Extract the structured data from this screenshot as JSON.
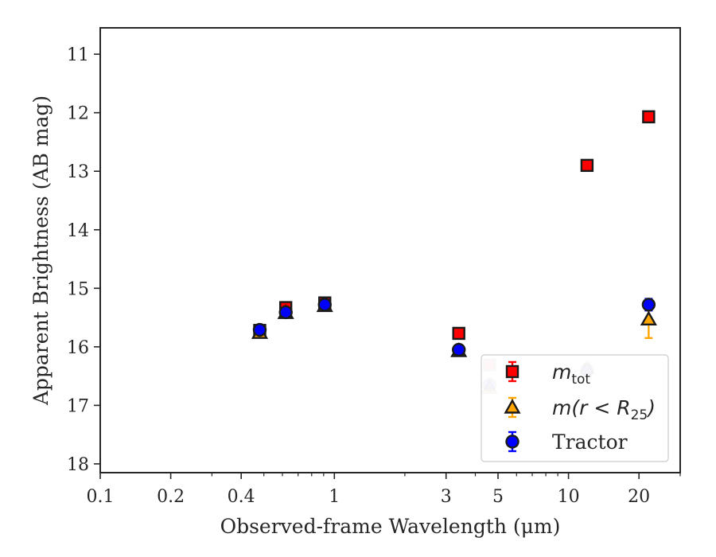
{
  "chart_data": {
    "type": "scatter",
    "xlabel": "Observed-frame Wavelength (μm)",
    "ylabel": "Apparent Brightness (AB mag)",
    "xscale": "log",
    "xlim": [
      0.1,
      30
    ],
    "ylim": [
      18.15,
      10.55
    ],
    "y_inverted": true,
    "xticks": [
      {
        "value": 0.1,
        "label": "0.1"
      },
      {
        "value": 0.2,
        "label": "0.2"
      },
      {
        "value": 0.4,
        "label": "0.4"
      },
      {
        "value": 1,
        "label": "1"
      },
      {
        "value": 3,
        "label": "3"
      },
      {
        "value": 5,
        "label": "5"
      },
      {
        "value": 10,
        "label": "10"
      },
      {
        "value": 20,
        "label": "20"
      }
    ],
    "yticks": [
      {
        "value": 11,
        "label": "11"
      },
      {
        "value": 12,
        "label": "12"
      },
      {
        "value": 13,
        "label": "13"
      },
      {
        "value": 14,
        "label": "14"
      },
      {
        "value": 15,
        "label": "15"
      },
      {
        "value": 16,
        "label": "16"
      },
      {
        "value": 17,
        "label": "17"
      },
      {
        "value": 18,
        "label": "18"
      }
    ],
    "grid": false,
    "legend_position": "lower-right",
    "series": [
      {
        "name": "m_tot",
        "marker": "square",
        "face_color": "#ff0000",
        "edge_color": "#1a1a1a",
        "error_color": "#ff0000",
        "points": [
          {
            "x": 0.48,
            "y": 15.72,
            "err": 0.05
          },
          {
            "x": 0.62,
            "y": 15.33,
            "err": 0.05
          },
          {
            "x": 0.91,
            "y": 15.25,
            "err": 0.05
          },
          {
            "x": 3.4,
            "y": 15.77,
            "err": 0.05
          },
          {
            "x": 4.6,
            "y": 16.31,
            "err": 0.05,
            "faded": true
          },
          {
            "x": 12,
            "y": 12.9,
            "err": 0.05
          },
          {
            "x": 22,
            "y": 12.07,
            "err": 0.05
          }
        ]
      },
      {
        "name": "m(r < R25)",
        "marker": "triangle",
        "face_color": "#ffa500",
        "edge_color": "#1a1a1a",
        "error_color": "#ffa500",
        "points": [
          {
            "x": 0.48,
            "y": 15.76,
            "err": 0.05
          },
          {
            "x": 0.62,
            "y": 15.42,
            "err": 0.05
          },
          {
            "x": 0.91,
            "y": 15.3,
            "err": 0.05
          },
          {
            "x": 3.4,
            "y": 16.07,
            "err": 0.05
          },
          {
            "x": 4.6,
            "y": 16.7,
            "err": 0.05,
            "faded": true
          },
          {
            "x": 12,
            "y": 16.37,
            "err": 0.1,
            "faded": true
          },
          {
            "x": 22,
            "y": 15.53,
            "err": 0.32
          }
        ]
      },
      {
        "name": "Tractor",
        "marker": "circle",
        "face_color": "#0000ff",
        "edge_color": "#1a1a1a",
        "error_color": "#0000ff",
        "points": [
          {
            "x": 0.48,
            "y": 15.71,
            "err": 0.05
          },
          {
            "x": 0.62,
            "y": 15.41,
            "err": 0.05
          },
          {
            "x": 0.91,
            "y": 15.28,
            "err": 0.05
          },
          {
            "x": 3.4,
            "y": 16.05,
            "err": 0.05
          },
          {
            "x": 4.6,
            "y": 16.65,
            "err": 0.05,
            "faded": true
          },
          {
            "x": 12,
            "y": 16.4,
            "err": 0.05,
            "faded": true
          },
          {
            "x": 22,
            "y": 15.28,
            "err": 0.1
          }
        ]
      }
    ]
  }
}
